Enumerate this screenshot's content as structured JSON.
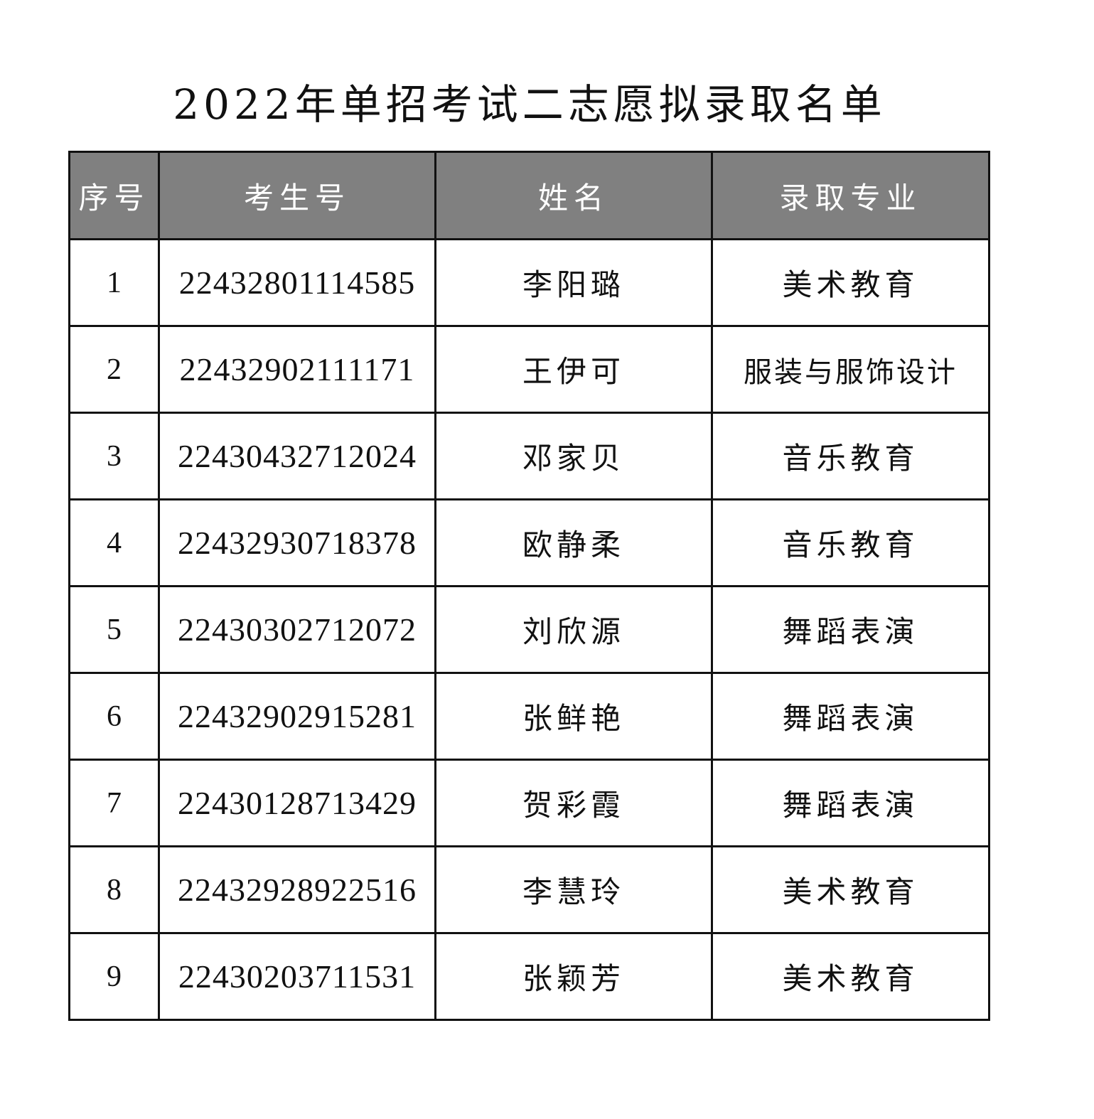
{
  "title": "2022年单招考试二志愿拟录取名单",
  "table": {
    "headers": [
      "序号",
      "考生号",
      "姓名",
      "录取专业"
    ],
    "rows": [
      {
        "index": "1",
        "exam_id": "22432801114585",
        "name": "李阳璐",
        "major": "美术教育"
      },
      {
        "index": "2",
        "exam_id": "22432902111171",
        "name": "王伊可",
        "major": "服装与服饰设计"
      },
      {
        "index": "3",
        "exam_id": "22430432712024",
        "name": "邓家贝",
        "major": "音乐教育"
      },
      {
        "index": "4",
        "exam_id": "22432930718378",
        "name": "欧静柔",
        "major": "音乐教育"
      },
      {
        "index": "5",
        "exam_id": "22430302712072",
        "name": "刘欣源",
        "major": "舞蹈表演"
      },
      {
        "index": "6",
        "exam_id": "22432902915281",
        "name": "张鲜艳",
        "major": "舞蹈表演"
      },
      {
        "index": "7",
        "exam_id": "22430128713429",
        "name": "贺彩霞",
        "major": "舞蹈表演"
      },
      {
        "index": "8",
        "exam_id": "22432928922516",
        "name": "李慧玲",
        "major": "美术教育"
      },
      {
        "index": "9",
        "exam_id": "22430203711531",
        "name": "张颖芳",
        "major": "美术教育"
      }
    ]
  },
  "colors": {
    "header_bg": "#808080",
    "header_text": "#ffffff",
    "border": "#111111"
  }
}
